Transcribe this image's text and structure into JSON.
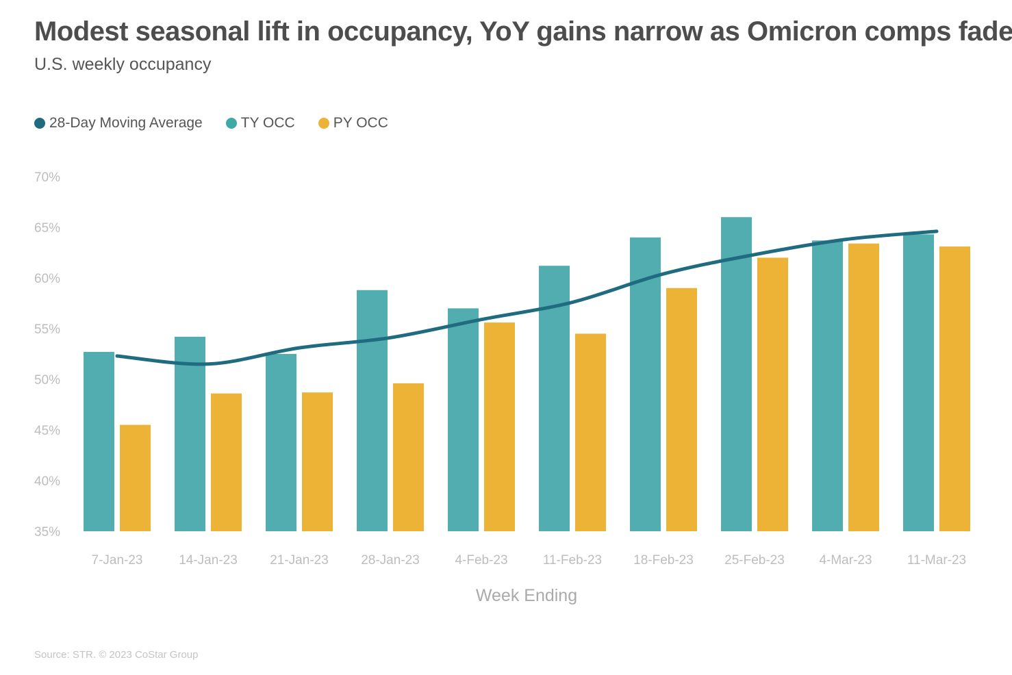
{
  "chart_data": {
    "type": "bar",
    "title": "Modest seasonal lift in occupancy, YoY gains narrow as Omicron comps fade",
    "subtitle": "U.S. weekly occupancy",
    "xlabel": "Week Ending",
    "ylabel": "",
    "ylim": [
      35,
      70
    ],
    "yticks": [
      "70%",
      "65%",
      "60%",
      "55%",
      "50%",
      "45%",
      "40%",
      "35%"
    ],
    "ytick_values": [
      70,
      65,
      60,
      55,
      50,
      45,
      40,
      35
    ],
    "categories": [
      "7-Jan-23",
      "14-Jan-23",
      "21-Jan-23",
      "28-Jan-23",
      "4-Feb-23",
      "11-Feb-23",
      "18-Feb-23",
      "25-Feb-23",
      "4-Mar-23",
      "11-Mar-23"
    ],
    "series": [
      {
        "name": "TY OCC",
        "type": "bar",
        "color": "#52adb0",
        "values": [
          52.7,
          54.2,
          52.5,
          58.8,
          57.0,
          61.2,
          64.0,
          66.0,
          63.7,
          64.3
        ]
      },
      {
        "name": "PY OCC",
        "type": "bar",
        "color": "#ecb336",
        "values": [
          45.5,
          48.6,
          48.7,
          49.6,
          55.6,
          54.5,
          59.0,
          62.0,
          63.4,
          63.1
        ]
      },
      {
        "name": "28-Day Moving Average",
        "type": "line",
        "color": "#1f6b80",
        "values": [
          52.3,
          51.5,
          53.1,
          54.1,
          55.9,
          57.6,
          60.4,
          62.3,
          63.8,
          64.6
        ]
      }
    ],
    "legend_position": "top-left",
    "grid": false
  },
  "legend": {
    "items": [
      {
        "label": "28-Day Moving Average",
        "color": "#1f6b80"
      },
      {
        "label": "TY OCC",
        "color": "#3fa9a6"
      },
      {
        "label": "PY OCC",
        "color": "#ecb336"
      }
    ]
  },
  "source": "Source: STR. © 2023 CoStar Group"
}
